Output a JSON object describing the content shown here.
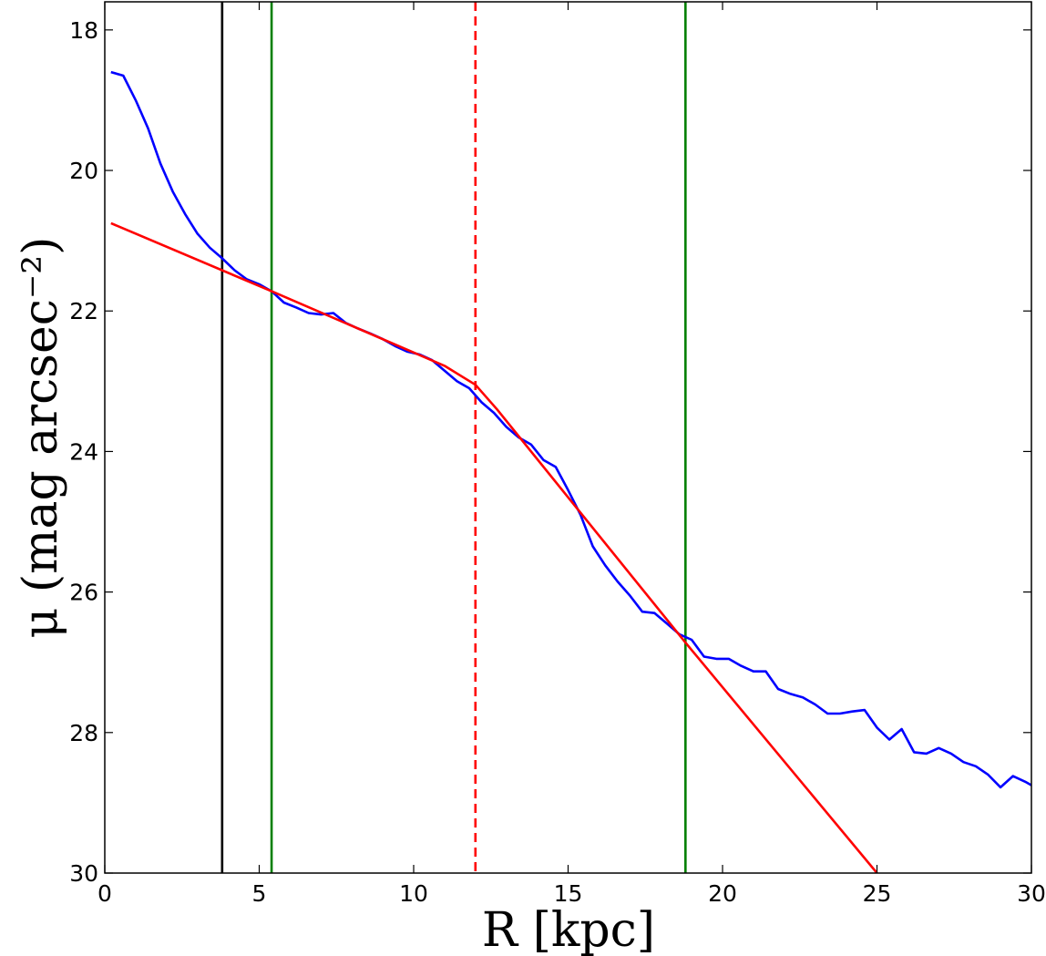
{
  "chart_data": {
    "type": "line",
    "xlabel": "R [kpc]",
    "ylabel": "μ (mag arcsec⁻²)",
    "xlim": [
      0,
      30
    ],
    "ylim": [
      30,
      17.6
    ],
    "y_inverted": true,
    "grid": false,
    "x_ticks": [
      "0",
      "5",
      "10",
      "15",
      "20",
      "25",
      "30"
    ],
    "y_ticks": [
      "18",
      "20",
      "22",
      "24",
      "26",
      "28",
      "30"
    ],
    "series": [
      {
        "color": "#0000ff",
        "style": "solid",
        "x": [
          0.2,
          0.6,
          1.0,
          1.4,
          1.8,
          2.2,
          2.6,
          3.0,
          3.4,
          3.8,
          4.2,
          4.6,
          5.0,
          5.4,
          5.8,
          6.2,
          6.6,
          7.0,
          7.4,
          7.8,
          8.2,
          8.6,
          9.0,
          9.4,
          9.8,
          10.2,
          10.6,
          11.0,
          11.4,
          11.8,
          12.2,
          12.6,
          13.0,
          13.4,
          13.8,
          14.2,
          14.6,
          15.0,
          15.4,
          15.8,
          16.2,
          16.6,
          17.0,
          17.4,
          17.8,
          18.2,
          18.6,
          19.0,
          19.4,
          19.8,
          20.2,
          20.6,
          21.0,
          21.4,
          21.8,
          22.2,
          22.6,
          23.0,
          23.4,
          23.8,
          24.2,
          24.6,
          25.0,
          25.4,
          25.8,
          26.2,
          26.6,
          27.0,
          27.4,
          27.8,
          28.2,
          28.6,
          29.0,
          29.4,
          29.8,
          30.0
        ],
        "y": [
          18.6,
          18.65,
          19.0,
          19.4,
          19.9,
          20.3,
          20.62,
          20.9,
          21.1,
          21.25,
          21.42,
          21.55,
          21.62,
          21.72,
          21.88,
          21.95,
          22.03,
          22.05,
          22.03,
          22.17,
          22.25,
          22.32,
          22.4,
          22.5,
          22.58,
          22.62,
          22.7,
          22.85,
          23.0,
          23.1,
          23.3,
          23.45,
          23.65,
          23.8,
          23.9,
          24.12,
          24.22,
          24.55,
          24.9,
          25.35,
          25.62,
          25.85,
          26.05,
          26.28,
          26.3,
          26.45,
          26.6,
          26.68,
          26.92,
          26.95,
          26.95,
          27.05,
          27.13,
          27.13,
          27.38,
          27.45,
          27.5,
          27.6,
          27.73,
          27.73,
          27.7,
          27.68,
          27.93,
          28.1,
          27.95,
          28.28,
          28.3,
          28.22,
          28.3,
          28.42,
          28.48,
          28.6,
          28.78,
          28.62,
          28.7,
          28.75
        ]
      },
      {
        "color": "#ff0000",
        "style": "solid",
        "x": [
          0.2,
          5.4,
          11.0,
          12.0,
          12.7,
          18.8,
          25.0
        ],
        "y": [
          20.75,
          21.72,
          22.78,
          23.05,
          23.4,
          26.72,
          30.0
        ]
      }
    ],
    "vertical_lines": [
      {
        "x": 3.8,
        "color": "#000000",
        "style": "solid"
      },
      {
        "x": 5.4,
        "color": "#008000",
        "style": "solid"
      },
      {
        "x": 12.0,
        "color": "#ff0000",
        "style": "dashed"
      },
      {
        "x": 18.8,
        "color": "#008000",
        "style": "solid"
      }
    ]
  }
}
